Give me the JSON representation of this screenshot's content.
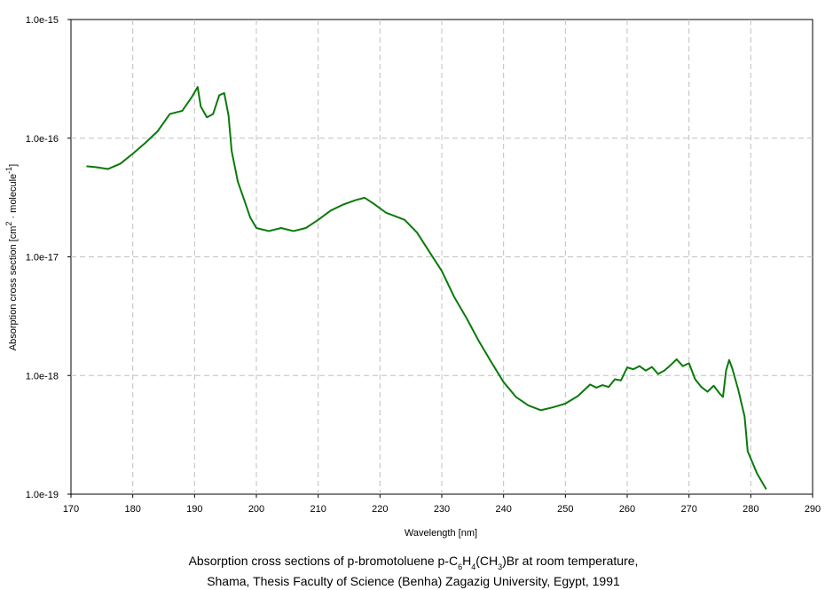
{
  "chart_data": {
    "type": "line",
    "x_label": "Wavelength [nm]",
    "y_label": [
      {
        "text": "Absorption cross section [cm"
      },
      {
        "text": "2",
        "shift": "super"
      },
      {
        "text": " · molecule"
      },
      {
        "text": "-1",
        "shift": "super"
      },
      {
        "text": "]"
      }
    ],
    "caption": [
      [
        {
          "text": "Absorption cross sections of p-bromotoluene p-C"
        },
        {
          "text": "6",
          "shift": "sub"
        },
        {
          "text": "H"
        },
        {
          "text": "4",
          "shift": "sub"
        },
        {
          "text": "(CH"
        },
        {
          "text": "3",
          "shift": "sub"
        },
        {
          "text": ")Br at room temperature,"
        }
      ],
      [
        {
          "text": "Shama, Thesis Faculty of Science (Benha) Zagazig University, Egypt, 1991"
        }
      ]
    ],
    "y_log": true,
    "grid": true,
    "xlim": [
      170,
      290
    ],
    "xticks": [
      170,
      180,
      190,
      200,
      210,
      220,
      230,
      240,
      250,
      260,
      270,
      280,
      290
    ],
    "ylim": [
      1e-19,
      1e-15
    ],
    "yticks": [
      {
        "value": 1e-19,
        "label": "1.0e-19"
      },
      {
        "value": 1e-18,
        "label": "1.0e-18"
      },
      {
        "value": 1e-17,
        "label": "1.0e-17"
      },
      {
        "value": 1e-16,
        "label": "1.0e-16"
      },
      {
        "value": 1e-15,
        "label": "1.0e-15"
      }
    ],
    "series": [
      {
        "color": "#0a7a0a",
        "x": [
          172.5,
          174,
          176,
          178,
          180,
          182,
          184,
          186,
          188,
          189.5,
          190.5,
          191,
          192,
          193,
          194,
          194.8,
          195.5,
          196,
          197,
          198,
          199,
          200,
          202,
          204,
          206,
          208,
          210,
          212,
          214,
          216,
          217.5,
          219,
          221,
          224,
          226,
          228,
          230,
          232,
          234,
          236,
          238,
          240,
          242,
          244,
          246,
          248,
          250,
          252,
          254,
          255,
          256,
          257,
          258,
          259,
          260,
          261,
          262,
          263,
          264,
          265,
          266,
          267,
          268,
          269,
          270,
          271,
          272,
          273,
          274,
          275,
          275.5,
          276,
          276.5,
          277,
          278,
          279,
          279.5,
          281,
          282.5
        ],
        "values": [
          5.8e-17,
          5.7e-17,
          5.5e-17,
          6.1e-17,
          7.4e-17,
          9.1e-17,
          1.14e-16,
          1.6e-16,
          1.7e-16,
          2.2e-16,
          2.7e-16,
          1.85e-16,
          1.5e-16,
          1.6e-16,
          2.3e-16,
          2.4e-16,
          1.55e-16,
          7.8e-17,
          4.3e-17,
          3.05e-17,
          2.15e-17,
          1.75e-17,
          1.65e-17,
          1.75e-17,
          1.65e-17,
          1.75e-17,
          2.05e-17,
          2.45e-17,
          2.75e-17,
          3e-17,
          3.15e-17,
          2.8e-17,
          2.35e-17,
          2.05e-17,
          1.6e-17,
          1.1e-17,
          7.6e-18,
          4.6e-18,
          3.05e-18,
          1.95e-18,
          1.3e-18,
          8.8e-19,
          6.6e-19,
          5.6e-19,
          5.1e-19,
          5.4e-19,
          5.8e-19,
          6.7e-19,
          8.4e-19,
          7.9e-19,
          8.3e-19,
          8e-19,
          9.3e-19,
          9.1e-19,
          1.17e-18,
          1.13e-18,
          1.2e-18,
          1.1e-18,
          1.18e-18,
          1.03e-18,
          1.1e-18,
          1.22e-18,
          1.37e-18,
          1.2e-18,
          1.27e-18,
          9.3e-19,
          8e-19,
          7.3e-19,
          8.2e-19,
          7e-19,
          6.6e-19,
          1.1e-18,
          1.35e-18,
          1.15e-18,
          7.5e-19,
          4.5e-19,
          2.3e-19,
          1.5e-19,
          1.1e-19
        ]
      }
    ]
  }
}
